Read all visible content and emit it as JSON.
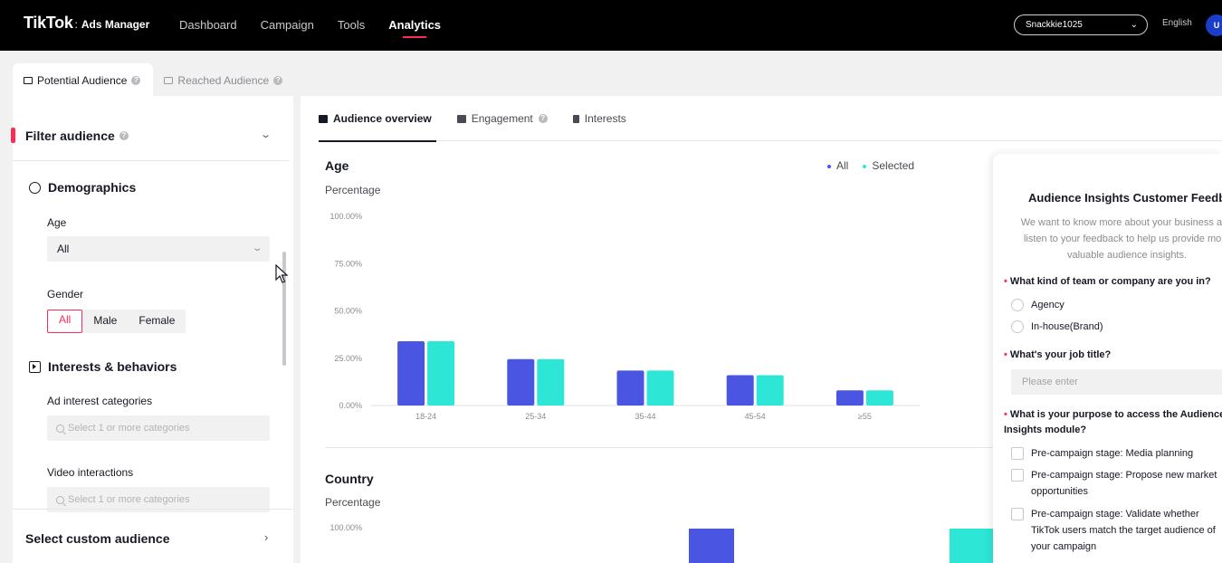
{
  "nav": {
    "logo": "TikTok",
    "separator": ":",
    "product": "Ads Manager",
    "links": [
      "Dashboard",
      "Campaign",
      "Tools",
      "Analytics"
    ],
    "active": "Analytics",
    "account": "Snackkie1025",
    "language": "English",
    "avatar": "U"
  },
  "audience_tabs": [
    {
      "label": "Potential Audience",
      "active": true
    },
    {
      "label": "Reached Audience",
      "active": false
    }
  ],
  "filter": {
    "title": "Filter audience",
    "demographics": {
      "title": "Demographics",
      "age_label": "Age",
      "age_value": "All",
      "gender_label": "Gender",
      "gender_options": [
        "All",
        "Male",
        "Female"
      ],
      "gender_selected": "All"
    },
    "interests": {
      "title": "Interests & behaviors",
      "ad_interest_label": "Ad interest categories",
      "ad_interest_placeholder": "Select 1 or more categories",
      "video_label": "Video interactions",
      "video_placeholder": "Select 1 or more categories"
    },
    "custom_audience": "Select custom audience"
  },
  "content_tabs": [
    {
      "label": "Audience overview",
      "active": true
    },
    {
      "label": "Engagement",
      "active": false
    },
    {
      "label": "Interests",
      "active": false
    }
  ],
  "legend": {
    "all": "All",
    "selected": "Selected"
  },
  "colors": {
    "all": "#4a56e2",
    "selected": "#2ee6d6",
    "accent": "#fe2c55"
  },
  "chart_data": [
    {
      "type": "bar",
      "title": "Age",
      "ylabel": "Percentage",
      "categories": [
        "18-24",
        "25-34",
        "35-44",
        "45-54",
        "≥55"
      ],
      "yticks": [
        "100.00%",
        "75.00%",
        "50.00%",
        "25.00%",
        "0.00%"
      ],
      "ylim": [
        0,
        100
      ],
      "series": [
        {
          "name": "All",
          "values": [
            34,
            24.5,
            18.5,
            16,
            8
          ]
        },
        {
          "name": "Selected",
          "values": [
            34,
            24.5,
            18.5,
            16,
            8
          ]
        }
      ],
      "legend": "top-right",
      "grid": false
    },
    {
      "type": "bar",
      "title": "Country",
      "ylabel": "Percentage",
      "yticks": [
        "100.00%"
      ],
      "ylim": [
        0,
        100
      ]
    }
  ],
  "feedback": {
    "title": "Audience Insights Customer Feedback",
    "description": "We want to know more about your business and listen to your feedback to help us provide more valuable audience insights.",
    "q1": "What kind of team or company are you in?",
    "q1_options": [
      "Agency",
      "In-house(Brand)"
    ],
    "q2": "What's your job title?",
    "q2_placeholder": "Please enter",
    "q3": "What is your purpose to access the Audience Insights module?",
    "q3_options": [
      "Pre-campaign stage: Media planning",
      "Pre-campaign stage: Propose new market opportunities",
      "Pre-campaign stage: Validate whether TikTok users match the target audience of your campaign"
    ]
  }
}
